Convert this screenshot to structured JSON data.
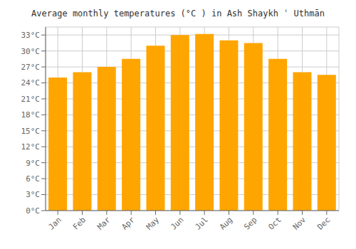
{
  "chart_data": {
    "type": "bar",
    "title": "Average monthly temperatures (°C ) in Ash Shaykh ʿ Uthmān",
    "categories": [
      "Jan",
      "Feb",
      "Mar",
      "Apr",
      "May",
      "Jun",
      "Jul",
      "Aug",
      "Sep",
      "Oct",
      "Nov",
      "Dec"
    ],
    "values": [
      25.0,
      26.0,
      27.0,
      28.5,
      31.0,
      33.0,
      33.2,
      32.0,
      31.5,
      28.5,
      26.0,
      25.5
    ],
    "color": "#FFA500",
    "ylim": [
      0,
      34.5
    ],
    "yticks": [
      {
        "value": 0,
        "label": "0°C"
      },
      {
        "value": 3,
        "label": "3°C"
      },
      {
        "value": 6,
        "label": "6°C"
      },
      {
        "value": 9,
        "label": "9°C"
      },
      {
        "value": 12,
        "label": "12°C"
      },
      {
        "value": 15,
        "label": "15°C"
      },
      {
        "value": 18,
        "label": "18°C"
      },
      {
        "value": 21,
        "label": "21°C"
      },
      {
        "value": 24,
        "label": "24°C"
      },
      {
        "value": 27,
        "label": "27°C"
      },
      {
        "value": 30,
        "label": "30°C"
      },
      {
        "value": 33,
        "label": "33°C"
      }
    ],
    "grid": true
  }
}
